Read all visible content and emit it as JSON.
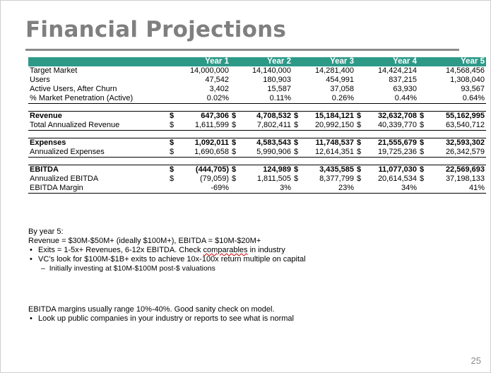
{
  "slide": {
    "title": "Financial Projections",
    "page_number": "25"
  },
  "table": {
    "headers": [
      "Year 1",
      "Year 2",
      "Year 3",
      "Year 4",
      "Year 5"
    ],
    "market": [
      {
        "label": "Target Market",
        "values": [
          "14,000,000",
          "14,140,000",
          "14,281,400",
          "14,424,214",
          "14,568,456"
        ]
      },
      {
        "label": "Users",
        "values": [
          "47,542",
          "180,903",
          "454,991",
          "837,215",
          "1,308,040"
        ]
      },
      {
        "label": "Active Users, After Churn",
        "values": [
          "3,402",
          "15,587",
          "37,058",
          "63,930",
          "93,567"
        ]
      },
      {
        "label": "% Market Penetration (Active)",
        "values": [
          "0.02%",
          "0.11%",
          "0.26%",
          "0.44%",
          "0.64%"
        ]
      }
    ],
    "revenue": [
      {
        "label": "Revenue",
        "bold": true,
        "values": [
          "647,306",
          "4,708,532",
          "15,184,121",
          "32,632,708",
          "55,162,995"
        ]
      },
      {
        "label": "Total Annualized Revenue",
        "values": [
          "1,611,599",
          "7,802,411",
          "20,992,150",
          "40,339,770",
          "63,540,712"
        ]
      }
    ],
    "expenses": [
      {
        "label": "Expenses",
        "bold": true,
        "values": [
          "1,092,011",
          "4,583,543",
          "11,748,537",
          "21,555,679",
          "32,593,302"
        ]
      },
      {
        "label": "Annualized Expenses",
        "values": [
          "1,690,658",
          "5,990,906",
          "12,614,351",
          "19,725,236",
          "26,342,579"
        ]
      }
    ],
    "ebitda": [
      {
        "label": "EBITDA",
        "bold": true,
        "values": [
          "(444,705)",
          "124,989",
          "3,435,585",
          "11,077,030",
          "22,569,693"
        ]
      },
      {
        "label": "Annualized EBITDA",
        "values": [
          "(79,059)",
          "1,811,505",
          "8,377,799",
          "20,614,534",
          "37,198,133"
        ]
      }
    ],
    "margin": {
      "label": "EBITDA Margin",
      "values": [
        "-69%",
        "3%",
        "23%",
        "34%",
        "41%"
      ]
    },
    "currency_symbol": "$"
  },
  "notes": {
    "intro": "By year 5:",
    "revenue_line": "Revenue = $30M-$50M+ (ideally $100M+), EBITDA = $10M-$20M+",
    "bullet1_pre": "Exits = 1-5x+ Revenues, 6-12x EBITDA.  Check ",
    "bullet1_squiggle": "comparables",
    "bullet1_post": " in industry",
    "bullet2": "VC’s look for $100M-$1B+ exits to achieve 10x-100x return multiple on capital",
    "sub_bullet": "Initially investing at $10M-$100M post-$ valuations",
    "margin_note": "EBITDA margins usually range 10%-40%.  Good sanity check on model.",
    "bullet3": "Look up public companies in your industry or reports to see what is normal",
    "bullet_char": "•",
    "dash_char": "–"
  }
}
